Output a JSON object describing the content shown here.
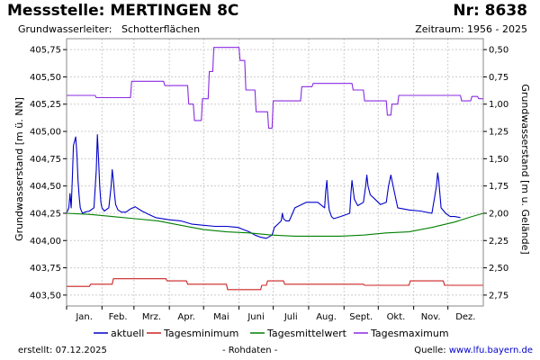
{
  "header": {
    "title": "Messstelle: MERTINGEN 8C",
    "nr": "Nr: 8638",
    "aquifer_label": "Grundwasserleiter:",
    "aquifer_value": "Schotterflächen",
    "period": "Zeitraum: 1956 - 2025"
  },
  "footer": {
    "created": "erstellt:  07.12.2025",
    "rawdata": "- Rohdaten -",
    "source_label": "Quelle:",
    "source_link": "www.lfu.bayern.de"
  },
  "colors": {
    "aktuell": "#0000c8",
    "tagesminimum": "#cc2222",
    "tagesmittelwert": "#008000",
    "tagesmaximum": "#8a2be2",
    "grid": "#cccccc",
    "frame": "#888888"
  },
  "chart_data": {
    "type": "line",
    "xlabel": "",
    "ylabel": "Grundwasserstand [m ü. NN]",
    "y2label": "Grundwasserstand [m u. Gelände]",
    "ylim": [
      403.4,
      405.85
    ],
    "y2lim": [
      2.85,
      0.4
    ],
    "xlim": [
      0,
      365
    ],
    "yticks": [
      403.5,
      403.75,
      404.0,
      404.25,
      404.5,
      404.75,
      405.0,
      405.25,
      405.5,
      405.75
    ],
    "ytick_labels": [
      "403,50",
      "403,75",
      "404,00",
      "404,25",
      "404,50",
      "404,75",
      "405,00",
      "405,25",
      "405,50",
      "405,75"
    ],
    "y2ticks": [
      2.75,
      2.5,
      2.25,
      2.0,
      1.75,
      1.5,
      1.25,
      1.0,
      0.75,
      0.5
    ],
    "y2tick_labels": [
      "2,75",
      "2,50",
      "2,25",
      "2,00",
      "1,75",
      "1,50",
      "1,25",
      "1,00",
      "0,75",
      "0,50"
    ],
    "months": [
      "Jan.",
      "Feb.",
      "Mrz.",
      "Apr.",
      "Mai",
      "Juni",
      "Juli",
      "Aug.",
      "Sept.",
      "Okt.",
      "Nov.",
      "Dez."
    ],
    "month_starts": [
      0,
      31,
      59,
      90,
      120,
      151,
      181,
      212,
      243,
      273,
      304,
      334
    ],
    "grid": true,
    "legend_position": "bottom",
    "series": [
      {
        "name": "aktuell",
        "x": [
          0,
          2,
          3,
          4,
          5,
          6,
          8,
          9,
          10,
          11,
          12,
          13,
          14,
          16,
          20,
          24,
          26,
          27,
          28,
          29,
          30,
          31,
          33,
          37,
          39,
          40,
          41,
          42,
          43,
          45,
          48,
          52,
          56,
          60,
          66,
          72,
          78,
          90,
          100,
          110,
          120,
          130,
          140,
          150,
          155,
          160,
          165,
          170,
          175,
          180,
          182,
          185,
          188,
          189,
          190,
          192,
          195,
          200,
          210,
          220,
          226,
          227,
          228,
          229,
          230,
          232,
          234,
          240,
          248,
          249,
          250,
          252,
          255,
          260,
          262,
          263,
          264,
          266,
          270,
          275,
          280,
          282,
          284,
          286,
          290,
          300,
          310,
          320,
          324,
          325,
          326,
          328,
          332,
          336,
          340,
          345
        ],
        "y": [
          404.25,
          404.3,
          404.43,
          404.3,
          404.55,
          404.87,
          404.95,
          404.8,
          404.55,
          404.4,
          404.3,
          404.27,
          404.25,
          404.26,
          404.27,
          404.3,
          404.65,
          404.97,
          404.75,
          404.5,
          404.35,
          404.3,
          404.27,
          404.3,
          404.5,
          404.65,
          404.55,
          404.42,
          404.33,
          404.28,
          404.26,
          404.26,
          404.29,
          404.31,
          404.27,
          404.24,
          404.21,
          404.19,
          404.18,
          404.15,
          404.14,
          404.13,
          404.13,
          404.12,
          404.1,
          404.08,
          404.05,
          404.03,
          404.02,
          404.05,
          404.12,
          404.15,
          404.18,
          404.25,
          404.2,
          404.18,
          404.18,
          404.3,
          404.35,
          404.35,
          404.3,
          404.45,
          404.55,
          404.38,
          404.28,
          404.22,
          404.2,
          404.22,
          404.25,
          404.43,
          404.55,
          404.38,
          404.32,
          404.35,
          404.5,
          404.6,
          404.5,
          404.42,
          404.38,
          404.33,
          404.35,
          404.5,
          404.6,
          404.5,
          404.3,
          404.28,
          404.27,
          404.25,
          404.5,
          404.62,
          404.55,
          404.3,
          404.25,
          404.22,
          404.22,
          404.21
        ]
      },
      {
        "name": "Tagesminimum",
        "x": [
          0,
          20,
          21,
          40,
          41,
          87,
          88,
          105,
          106,
          140,
          141,
          170,
          171,
          175,
          176,
          190,
          191,
          260,
          261,
          300,
          301,
          330,
          331,
          365
        ],
        "y": [
          403.58,
          403.58,
          403.6,
          403.6,
          403.65,
          403.65,
          403.63,
          403.63,
          403.6,
          403.6,
          403.55,
          403.55,
          403.59,
          403.59,
          403.63,
          403.63,
          403.6,
          403.6,
          403.59,
          403.59,
          403.63,
          403.63,
          403.59,
          403.59
        ]
      },
      {
        "name": "Tagesmittelwert",
        "x": [
          0,
          20,
          40,
          60,
          80,
          100,
          120,
          140,
          160,
          180,
          200,
          220,
          240,
          260,
          280,
          300,
          320,
          340,
          355,
          365
        ],
        "y": [
          404.25,
          404.24,
          404.22,
          404.2,
          404.18,
          404.14,
          404.1,
          404.08,
          404.07,
          404.05,
          404.04,
          404.04,
          404.04,
          404.05,
          404.07,
          404.08,
          404.12,
          404.17,
          404.22,
          404.25
        ]
      },
      {
        "name": "Tagesmaximum",
        "x": [
          0,
          25,
          26,
          56,
          57,
          85,
          86,
          106,
          107,
          111,
          112,
          118,
          119,
          124,
          125,
          128,
          129,
          151,
          152,
          156,
          157,
          165,
          166,
          176,
          177,
          180,
          181,
          205,
          206,
          215,
          216,
          250,
          251,
          260,
          261,
          280,
          281,
          284,
          285,
          290,
          291,
          345,
          346,
          354,
          355,
          360,
          361,
          365
        ],
        "y": [
          405.33,
          405.33,
          405.31,
          405.31,
          405.46,
          405.46,
          405.42,
          405.42,
          405.25,
          405.25,
          405.1,
          405.1,
          405.3,
          405.3,
          405.55,
          405.55,
          405.77,
          405.77,
          405.65,
          405.65,
          405.38,
          405.38,
          405.18,
          405.18,
          405.03,
          405.03,
          405.28,
          405.28,
          405.41,
          405.41,
          405.44,
          405.44,
          405.38,
          405.38,
          405.28,
          405.28,
          405.15,
          405.15,
          405.25,
          405.25,
          405.33,
          405.33,
          405.28,
          405.28,
          405.32,
          405.32,
          405.3,
          405.3
        ]
      }
    ]
  }
}
